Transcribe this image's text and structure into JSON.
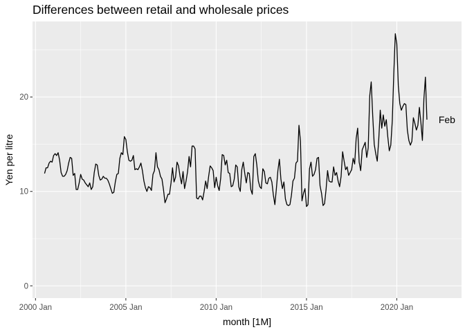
{
  "chart_data": {
    "type": "line",
    "title": "Differences between retail and wholesale prices",
    "xlabel": "month [1M]",
    "ylabel": "Yen per litre",
    "xlim": [
      "1999-11",
      "2023-08"
    ],
    "ylim": [
      -1.3,
      28
    ],
    "grid": true,
    "legend": "none",
    "x_ticks": [
      {
        "value": "2000-01",
        "label": "2000 Jan"
      },
      {
        "value": "2005-01",
        "label": "2005 Jan"
      },
      {
        "value": "2010-01",
        "label": "2010 Jan"
      },
      {
        "value": "2015-01",
        "label": "2015 Jan"
      },
      {
        "value": "2020-01",
        "label": "2020 Jan"
      }
    ],
    "y_ticks": [
      {
        "value": 0,
        "label": "0"
      },
      {
        "value": 10,
        "label": "10"
      },
      {
        "value": 20,
        "label": "20"
      }
    ],
    "annotations": [
      {
        "text": "Feb",
        "x": "2022-02",
        "y": 17.6
      }
    ],
    "colors": {
      "line": "#000000",
      "panel": "#ebebeb",
      "grid": "#ffffff"
    },
    "series": [
      {
        "start": "2000-07",
        "frequency": "monthly",
        "values": [
          11.9,
          12.5,
          12.5,
          13.0,
          13.2,
          13.1,
          13.8,
          14.0,
          13.8,
          14.1,
          13.3,
          12.0,
          11.6,
          11.6,
          11.8,
          12.2,
          13.0,
          13.6,
          13.5,
          11.7,
          11.9,
          10.2,
          10.2,
          10.9,
          11.8,
          11.3,
          11.2,
          10.9,
          10.7,
          10.5,
          10.9,
          10.2,
          10.5,
          12.0,
          12.9,
          12.8,
          11.7,
          11.2,
          11.3,
          11.6,
          11.4,
          11.4,
          11.2,
          10.8,
          10.3,
          9.8,
          9.9,
          11.0,
          11.8,
          11.9,
          13.5,
          14.1,
          13.9,
          15.8,
          15.5,
          14.2,
          13.3,
          13.2,
          13.3,
          13.8,
          12.3,
          12.4,
          12.3,
          12.6,
          13.0,
          12.2,
          11.1,
          10.4,
          10.0,
          10.5,
          10.4,
          10.1,
          11.8,
          12.2,
          14.1,
          12.6,
          12.3,
          11.6,
          11.3,
          10.2,
          8.8,
          9.2,
          9.7,
          9.7,
          10.9,
          12.5,
          11.0,
          11.5,
          13.1,
          12.7,
          11.6,
          10.8,
          12.1,
          10.3,
          11.1,
          12.1,
          13.7,
          12.6,
          14.8,
          14.8,
          14.5,
          9.3,
          9.2,
          9.5,
          9.5,
          9.1,
          10.0,
          11.1,
          10.3,
          11.6,
          12.7,
          12.5,
          12.2,
          10.4,
          11.5,
          10.6,
          10.1,
          11.4,
          13.9,
          13.8,
          12.8,
          13.3,
          12.0,
          11.9,
          10.5,
          10.6,
          11.3,
          12.8,
          12.6,
          10.5,
          10.0,
          12.3,
          13.1,
          11.9,
          10.9,
          12.0,
          11.9,
          10.2,
          9.7,
          13.7,
          14.0,
          12.8,
          11.1,
          10.5,
          10.3,
          12.4,
          12.1,
          10.9,
          10.8,
          11.4,
          11.5,
          11.0,
          9.6,
          8.6,
          10.3,
          12.2,
          13.4,
          11.3,
          10.3,
          11.0,
          9.2,
          8.6,
          8.5,
          8.6,
          9.6,
          11.1,
          11.4,
          13.0,
          13.2,
          17.0,
          15.3,
          9.0,
          9.8,
          10.3,
          8.4,
          8.6,
          12.4,
          13.1,
          11.6,
          11.8,
          12.3,
          13.5,
          13.6,
          10.6,
          9.8,
          8.5,
          8.7,
          10.2,
          12.2,
          11.1,
          11.0,
          11.0,
          12.6,
          11.7,
          12.0,
          11.1,
          10.5,
          11.6,
          14.2,
          13.2,
          12.3,
          12.6,
          11.7,
          12.0,
          12.3,
          13.5,
          12.9,
          15.6,
          16.7,
          13.1,
          12.2,
          14.4,
          14.8,
          15.2,
          13.6,
          14.6,
          20.1,
          21.6,
          18.0,
          15.0,
          14.0,
          13.2,
          15.5,
          18.6,
          16.7,
          18.1,
          16.9,
          17.6,
          15.8,
          14.3,
          14.9,
          17.5,
          22.5,
          26.7,
          25.6,
          21.2,
          19.3,
          18.6,
          19.0,
          19.3,
          19.2,
          16.5,
          15.4,
          14.9,
          15.3,
          17.8,
          17.2,
          16.5,
          17.0,
          18.9,
          17.3,
          15.4,
          19.8,
          22.1,
          17.6
        ]
      }
    ]
  }
}
